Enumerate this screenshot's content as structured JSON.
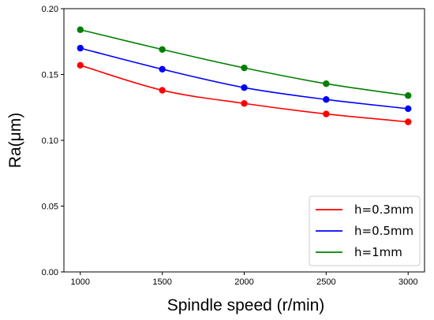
{
  "chart_data": {
    "type": "line",
    "title": "",
    "xlabel": "Spindle speed (r/min)",
    "ylabel": "Ra(μm)",
    "x": [
      1000,
      1500,
      2000,
      2500,
      3000
    ],
    "xlim": [
      900,
      3100
    ],
    "ylim": [
      0.0,
      0.2
    ],
    "xticks": [
      "1000",
      "1500",
      "2000",
      "2500",
      "3000"
    ],
    "yticks": [
      "0.00",
      "0.05",
      "0.10",
      "0.15",
      "0.20"
    ],
    "grid": false,
    "legend_position": "bottom-right",
    "series": [
      {
        "name": "h=0.3mm",
        "color": "#ff0000",
        "values": [
          0.157,
          0.138,
          0.128,
          0.12,
          0.114
        ]
      },
      {
        "name": "h=0.5mm",
        "color": "#0000ff",
        "values": [
          0.17,
          0.154,
          0.14,
          0.131,
          0.124
        ]
      },
      {
        "name": "h=1mm",
        "color": "#008000",
        "values": [
          0.184,
          0.169,
          0.155,
          0.143,
          0.134
        ]
      }
    ]
  }
}
